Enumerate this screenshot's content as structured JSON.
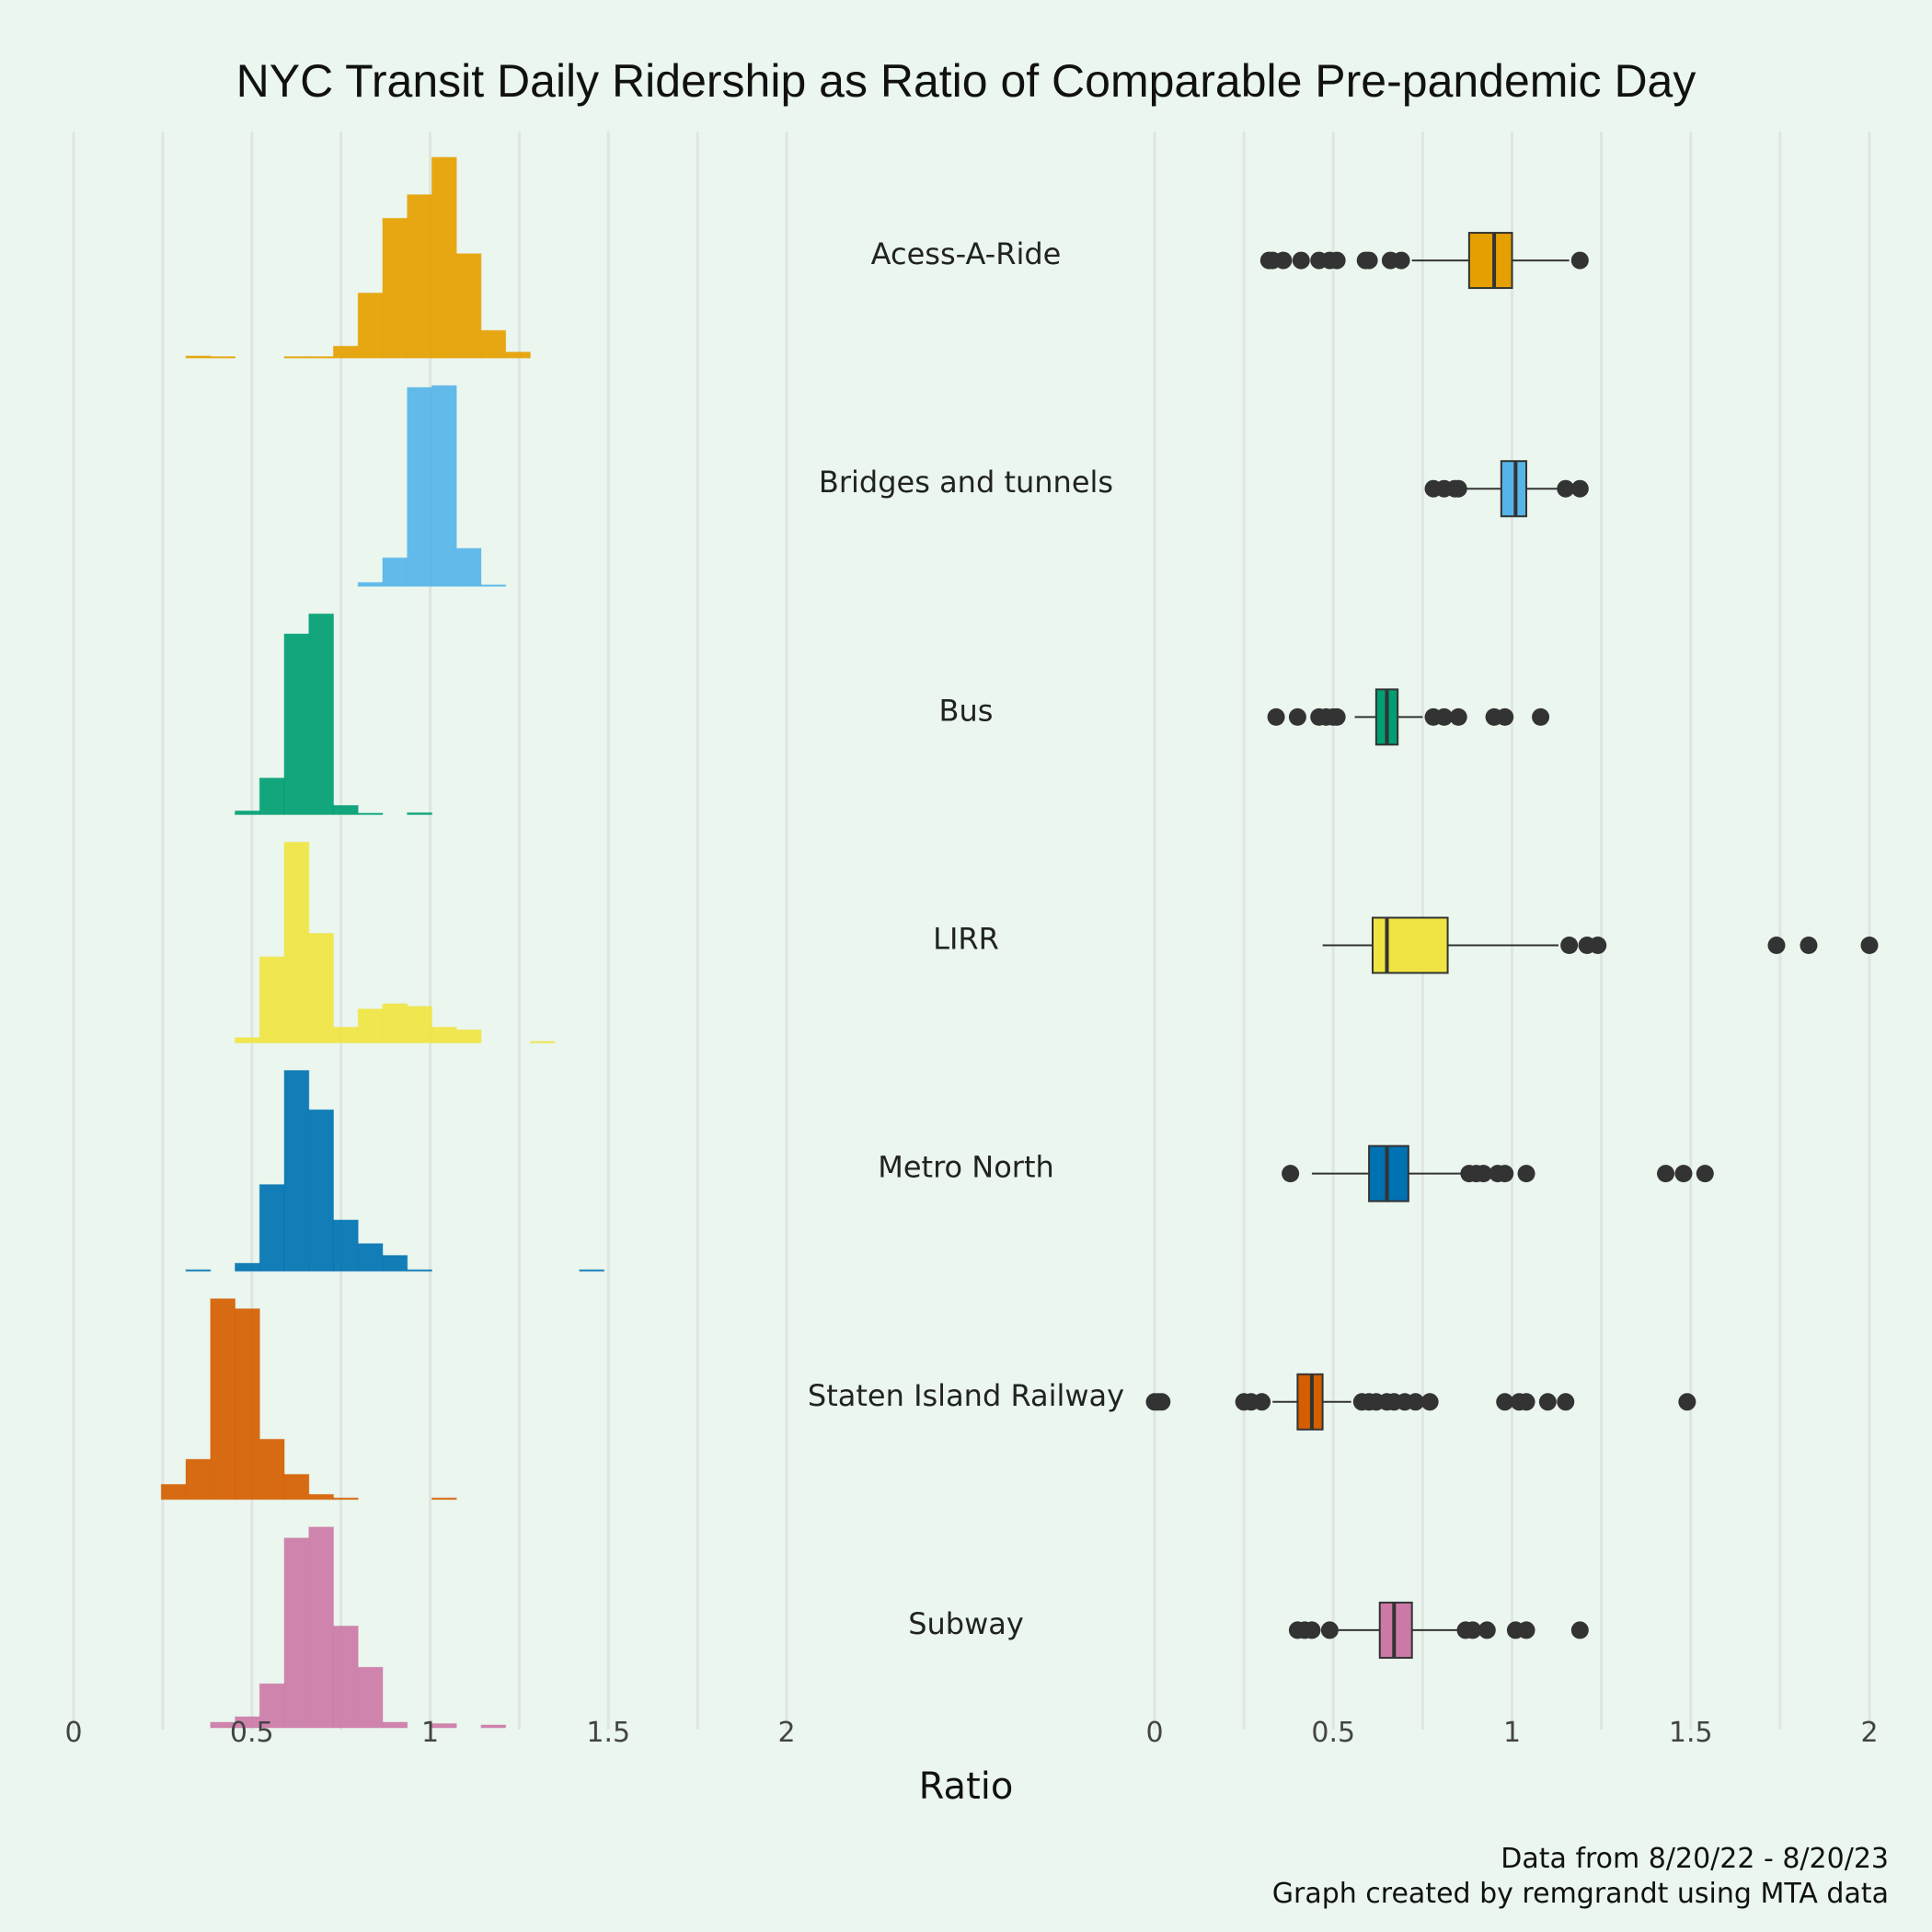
{
  "chart_data": {
    "type": "histogram-boxplot",
    "title": "NYC Transit Daily Ridership as Ratio of Comparable Pre-pandemic Day",
    "xlabel": "Ratio",
    "caption_lines": [
      "Data from 8/20/22 - 8/20/23",
      "Graph created by remgrandt using MTA data"
    ],
    "xlim": [
      0,
      2
    ],
    "x_ticks": [
      0,
      0.5,
      1,
      1.5,
      2
    ],
    "x_tick_labels": [
      "0",
      "0.5",
      "1",
      "1.5",
      "2"
    ],
    "bin_edges": [
      0.246,
      0.315,
      0.384,
      0.453,
      0.522,
      0.591,
      0.66,
      0.729,
      0.798,
      0.867,
      0.936,
      1.005,
      1.074,
      1.143,
      1.212,
      1.281,
      1.35,
      1.419,
      1.488
    ],
    "series": [
      {
        "name": "Acess-A-Ride",
        "color": "#E69F00",
        "hist": [
          0,
          1,
          0.3,
          0,
          0,
          0.3,
          0.4,
          6,
          33,
          71,
          83,
          102,
          53,
          14,
          3,
          0,
          0,
          0
        ],
        "box": {
          "q1": 0.88,
          "median": 0.95,
          "q3": 1.0,
          "whisker_low": 0.72,
          "whisker_high": 1.16
        },
        "outliers": [
          0.32,
          0.33,
          0.36,
          0.41,
          0.46,
          0.49,
          0.51,
          0.59,
          0.6,
          0.66,
          0.69,
          1.19
        ]
      },
      {
        "name": "Bridges and tunnels",
        "color": "#56B4E9",
        "hist": [
          0,
          0,
          0,
          0,
          0,
          0,
          0,
          0,
          2,
          15,
          105,
          106,
          20,
          0.3,
          0,
          0,
          0,
          0
        ],
        "box": {
          "q1": 0.97,
          "median": 1.01,
          "q3": 1.04,
          "whisker_low": 0.86,
          "whisker_high": 1.13
        },
        "outliers": [
          0.78,
          0.81,
          0.84,
          0.85,
          1.15,
          1.19
        ]
      },
      {
        "name": "Bus",
        "color": "#009E73",
        "hist": [
          0,
          0,
          0,
          2,
          20,
          99,
          110,
          5,
          0.3,
          0,
          1,
          0,
          0,
          0,
          0,
          0,
          0,
          0
        ],
        "box": {
          "q1": 0.62,
          "median": 0.65,
          "q3": 0.68,
          "whisker_low": 0.56,
          "whisker_high": 0.75
        },
        "outliers": [
          0.34,
          0.4,
          0.46,
          0.48,
          0.5,
          0.51,
          0.78,
          0.81,
          0.85,
          0.95,
          0.98,
          1.08
        ]
      },
      {
        "name": "LIRR",
        "color": "#F0E442",
        "hist": [
          0,
          0,
          0,
          2,
          33,
          77,
          42,
          6,
          13,
          15,
          14,
          6,
          5,
          0,
          0,
          0.3,
          0,
          0
        ],
        "box": {
          "q1": 0.61,
          "median": 0.65,
          "q3": 0.82,
          "whisker_low": 0.47,
          "whisker_high": 1.13
        },
        "outliers": [
          1.16,
          1.21,
          1.24,
          1.74,
          1.83,
          2.0
        ]
      },
      {
        "name": "Metro North",
        "color": "#0072B2",
        "hist": [
          0,
          0.3,
          0,
          2,
          22,
          51,
          41,
          13,
          7,
          4,
          0.3,
          0,
          0,
          0,
          0,
          0,
          0,
          0.3
        ],
        "box": {
          "q1": 0.6,
          "median": 0.65,
          "q3": 0.71,
          "whisker_low": 0.44,
          "whisker_high": 0.86
        },
        "outliers": [
          0.38,
          0.88,
          0.9,
          0.92,
          0.96,
          0.98,
          1.04,
          1.43,
          1.48,
          1.54
        ]
      },
      {
        "name": "Staten Island Railway",
        "color": "#D55E00",
        "hist": [
          3,
          8,
          40,
          38,
          12,
          5,
          1,
          0.3,
          0,
          0,
          0,
          0.3,
          0,
          0,
          0,
          0,
          0,
          0
        ],
        "box": {
          "q1": 0.4,
          "median": 0.44,
          "q3": 0.47,
          "whisker_low": 0.33,
          "whisker_high": 0.55
        },
        "outliers": [
          0.0,
          0.01,
          0.02,
          0.25,
          0.27,
          0.3,
          0.58,
          0.6,
          0.62,
          0.65,
          0.67,
          0.7,
          0.73,
          0.77,
          0.98,
          1.02,
          1.04,
          1.1,
          1.15,
          1.49
        ]
      },
      {
        "name": "Subway",
        "color": "#CC79A7",
        "hist": [
          0,
          0,
          2,
          4,
          16,
          69,
          73,
          37,
          22,
          2,
          0,
          1.5,
          0,
          1,
          0,
          0,
          0,
          0
        ],
        "box": {
          "q1": 0.63,
          "median": 0.67,
          "q3": 0.72,
          "whisker_low": 0.5,
          "whisker_high": 0.85
        },
        "outliers": [
          0.4,
          0.42,
          0.44,
          0.49,
          0.87,
          0.89,
          0.93,
          1.01,
          1.04,
          1.19
        ]
      }
    ]
  }
}
